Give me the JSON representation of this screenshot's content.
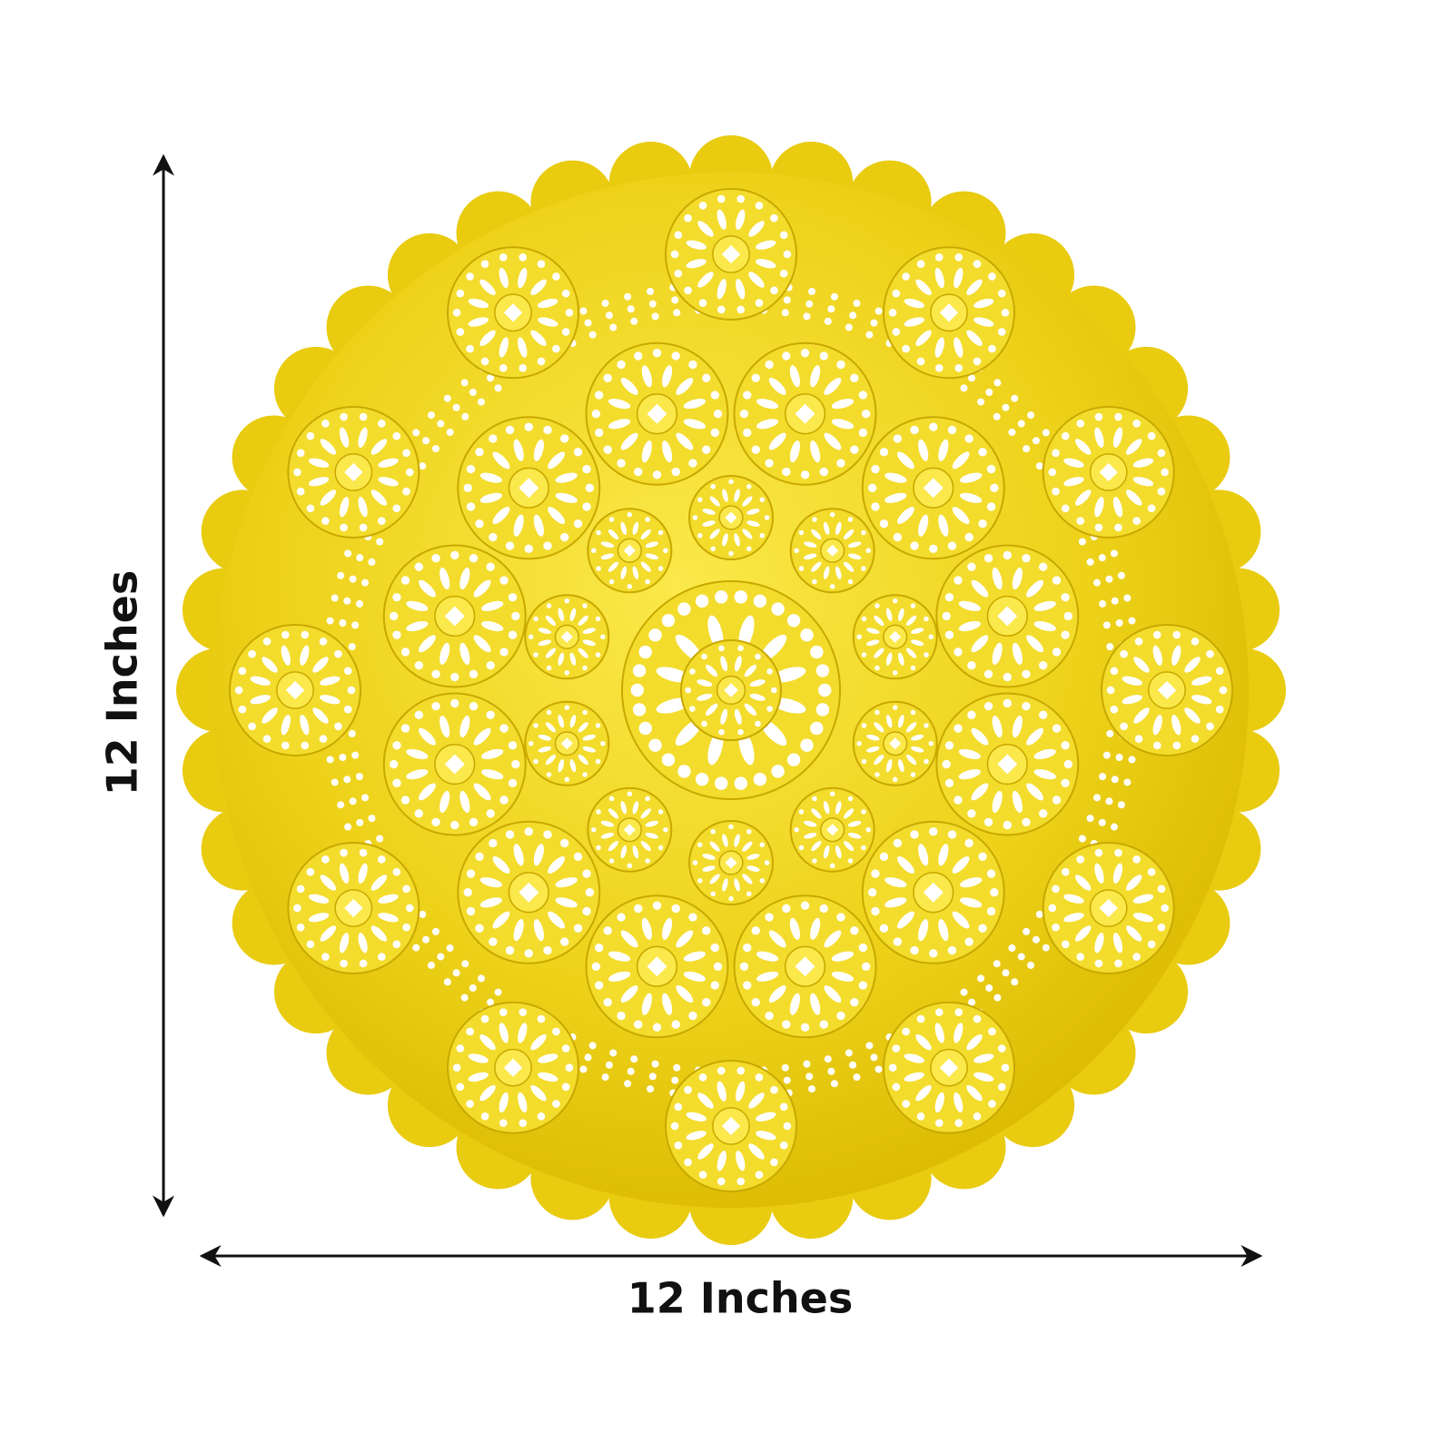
{
  "height_label": "12 Inches",
  "width_label": "12 Inches"
}
